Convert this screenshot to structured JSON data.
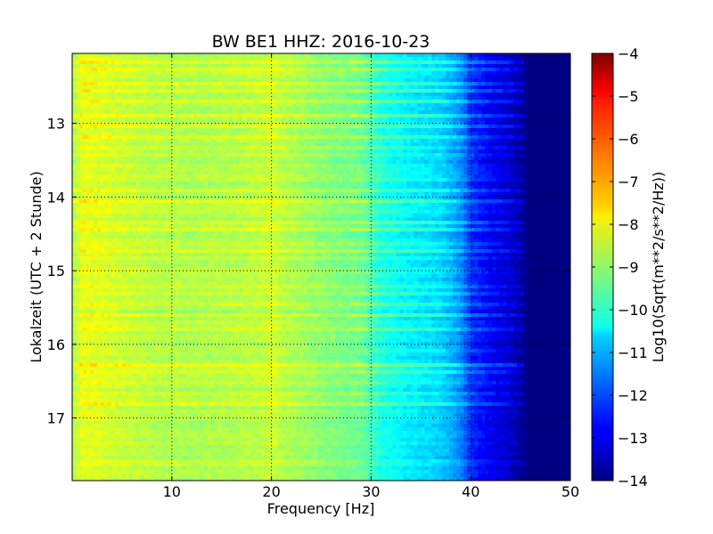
{
  "chart_data": {
    "type": "heatmap",
    "title": "BW BE1 HHZ: 2016-10-23",
    "xlabel": "Frequency [Hz]",
    "ylabel": "Lokalzeit (UTC + 2 Stunde)",
    "xlim": [
      0,
      50
    ],
    "ylim": [
      17.85,
      12.05
    ],
    "x_ticks": [
      10,
      20,
      30,
      40,
      50
    ],
    "x_tick_labels": [
      "10",
      "20",
      "30",
      "40",
      "50"
    ],
    "y_ticks": [
      13,
      14,
      15,
      16,
      17
    ],
    "y_tick_labels": [
      "13",
      "14",
      "15",
      "16",
      "17"
    ],
    "grid": true,
    "colormap": "jet",
    "colorbar": {
      "label": "Log10(Sqrt(m**2/s**2/Hz))",
      "min": -14,
      "max": -4,
      "ticks": [
        -4,
        -5,
        -6,
        -7,
        -8,
        -9,
        -10,
        -11,
        -12,
        -13,
        -14
      ],
      "tick_labels": [
        "−4",
        "−5",
        "−6",
        "−7",
        "−8",
        "−9",
        "−10",
        "−11",
        "−12",
        "−13",
        "−14"
      ]
    },
    "frequency_profile_hz": [
      0,
      1,
      2,
      4,
      8,
      12,
      16,
      19,
      20,
      21,
      25,
      29,
      31,
      34,
      37,
      39,
      40,
      42,
      44,
      45,
      46,
      50
    ],
    "frequency_profile_value": [
      -8.6,
      -8.0,
      -8.05,
      -8.2,
      -8.45,
      -8.55,
      -8.5,
      -8.4,
      -8.25,
      -8.45,
      -8.9,
      -9.2,
      -10.0,
      -10.4,
      -10.7,
      -11.4,
      -12.3,
      -12.9,
      -13.3,
      -13.7,
      -14,
      -14
    ],
    "bright_time_bands_hour": [
      12.17,
      12.28,
      12.45,
      12.55,
      12.7,
      12.9,
      13.05,
      13.2,
      13.35,
      13.45,
      13.6,
      13.65,
      13.75,
      13.9,
      14.05,
      14.18,
      14.35,
      14.45,
      14.62,
      14.72,
      14.85,
      15.0,
      15.2,
      15.32,
      15.45,
      15.48,
      15.6,
      15.8,
      16.1,
      16.28,
      16.38,
      16.5,
      16.65,
      16.82
    ]
  }
}
